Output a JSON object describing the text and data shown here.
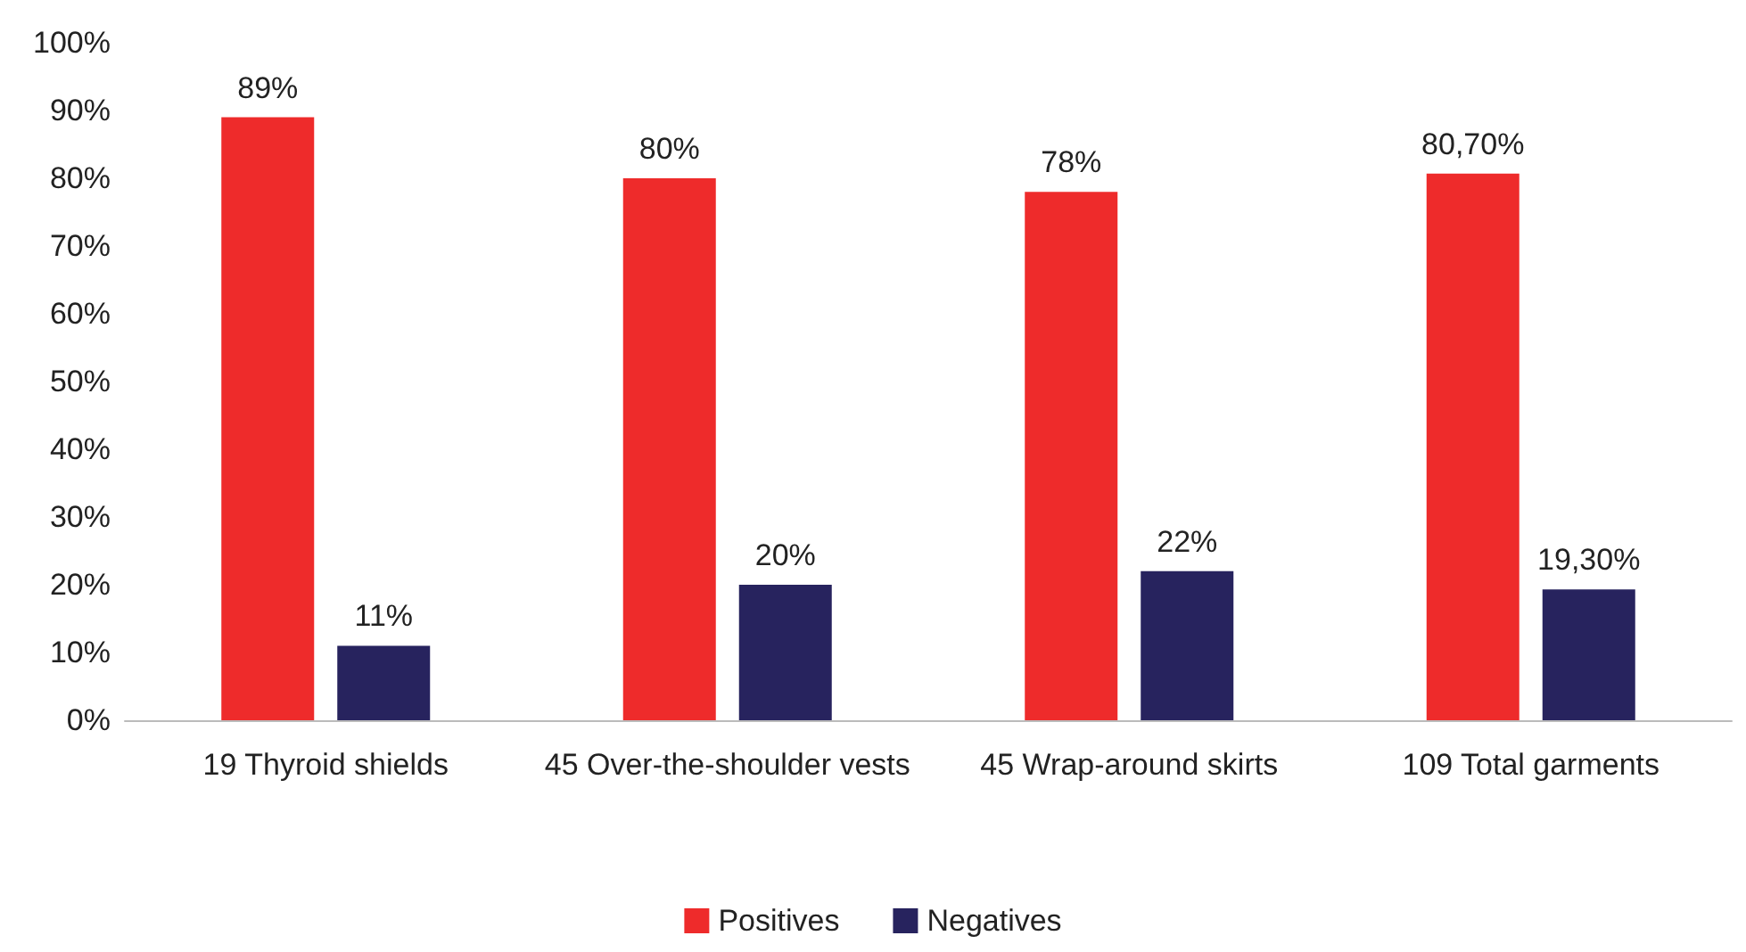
{
  "chart_data": {
    "type": "bar",
    "categories": [
      "19 Thyroid shields",
      "45 Over-the-shoulder vests",
      "45 Wrap-around skirts",
      "109 Total garments"
    ],
    "series": [
      {
        "name": "Positives",
        "color": "#ee2b2b",
        "values": [
          89,
          80,
          78,
          80.7
        ],
        "value_labels": [
          "89%",
          "80%",
          "78%",
          "80,70%"
        ]
      },
      {
        "name": "Negatives",
        "color": "#27235e",
        "values": [
          11,
          20,
          22,
          19.3
        ],
        "value_labels": [
          "11%",
          "20%",
          "22%",
          "19,30%"
        ]
      }
    ],
    "ylim": [
      0,
      100
    ],
    "yticks": [
      {
        "value": 0,
        "label": "0%"
      },
      {
        "value": 10,
        "label": "10%"
      },
      {
        "value": 20,
        "label": "20%"
      },
      {
        "value": 30,
        "label": "30%"
      },
      {
        "value": 40,
        "label": "40%"
      },
      {
        "value": 50,
        "label": "50%"
      },
      {
        "value": 60,
        "label": "60%"
      },
      {
        "value": 70,
        "label": "70%"
      },
      {
        "value": 80,
        "label": "80%"
      },
      {
        "value": 90,
        "label": "90%"
      },
      {
        "value": 100,
        "label": "100%"
      }
    ],
    "grid": false,
    "legend": "bottom"
  }
}
